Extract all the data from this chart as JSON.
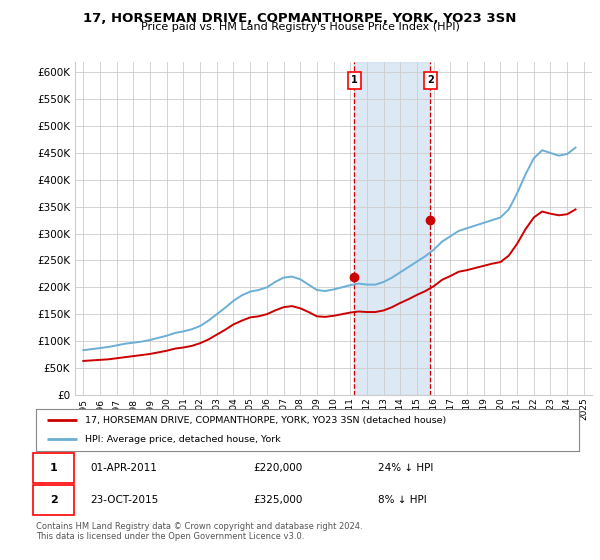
{
  "title": "17, HORSEMAN DRIVE, COPMANTHORPE, YORK, YO23 3SN",
  "subtitle": "Price paid vs. HM Land Registry's House Price Index (HPI)",
  "legend_line1": "17, HORSEMAN DRIVE, COPMANTHORPE, YORK, YO23 3SN (detached house)",
  "legend_line2": "HPI: Average price, detached house, York",
  "footer": "Contains HM Land Registry data © Crown copyright and database right 2024.\nThis data is licensed under the Open Government Licence v3.0.",
  "transactions": [
    {
      "id": 1,
      "date": "01-APR-2011",
      "price": 220000,
      "year": 2011.25,
      "pct": "24%",
      "direction": "↓"
    },
    {
      "id": 2,
      "date": "23-OCT-2015",
      "price": 325000,
      "year": 2015.8,
      "pct": "8%",
      "direction": "↓"
    }
  ],
  "hpi_color": "#6baed6",
  "price_color": "#cc0000",
  "marker_color": "#cc0000",
  "vline_color": "#cc0000",
  "highlight_color": "#c6dbef",
  "ylim": [
    0,
    620000
  ],
  "yticks": [
    0,
    50000,
    100000,
    150000,
    200000,
    250000,
    300000,
    350000,
    400000,
    450000,
    500000,
    550000,
    600000
  ],
  "hpi_data_x": [
    1995,
    1995.5,
    1996,
    1996.5,
    1997,
    1997.5,
    1998,
    1998.5,
    1999,
    1999.5,
    2000,
    2000.5,
    2001,
    2001.5,
    2002,
    2002.5,
    2003,
    2003.5,
    2004,
    2004.5,
    2005,
    2005.5,
    2006,
    2006.5,
    2007,
    2007.5,
    2008,
    2008.5,
    2009,
    2009.5,
    2010,
    2010.5,
    2011,
    2011.5,
    2012,
    2012.5,
    2013,
    2013.5,
    2014,
    2014.5,
    2015,
    2015.5,
    2016,
    2016.5,
    2017,
    2017.5,
    2018,
    2018.5,
    2019,
    2019.5,
    2020,
    2020.5,
    2021,
    2021.5,
    2022,
    2022.5,
    2023,
    2023.5,
    2024,
    2024.5
  ],
  "hpi_data_y": [
    83000,
    85000,
    87000,
    89000,
    92000,
    95000,
    97000,
    99000,
    102000,
    106000,
    110000,
    115000,
    118000,
    122000,
    128000,
    138000,
    150000,
    162000,
    175000,
    185000,
    192000,
    195000,
    200000,
    210000,
    218000,
    220000,
    215000,
    205000,
    195000,
    193000,
    196000,
    200000,
    204000,
    207000,
    205000,
    205000,
    210000,
    218000,
    228000,
    238000,
    248000,
    258000,
    270000,
    285000,
    295000,
    305000,
    310000,
    315000,
    320000,
    325000,
    330000,
    345000,
    375000,
    410000,
    440000,
    455000,
    450000,
    445000,
    448000,
    460000
  ],
  "price_data_x": [
    1995,
    1995.5,
    1996,
    1996.5,
    1997,
    1997.5,
    1998,
    1998.5,
    1999,
    1999.5,
    2000,
    2000.5,
    2001,
    2001.5,
    2002,
    2002.5,
    2003,
    2003.5,
    2004,
    2004.5,
    2005,
    2005.5,
    2006,
    2006.5,
    2007,
    2007.5,
    2008,
    2008.5,
    2009,
    2009.5,
    2010,
    2010.5,
    2011,
    2011.5,
    2012,
    2012.5,
    2013,
    2013.5,
    2014,
    2014.5,
    2015,
    2015.5,
    2016,
    2016.5,
    2017,
    2017.5,
    2018,
    2018.5,
    2019,
    2019.5,
    2020,
    2020.5,
    2021,
    2021.5,
    2022,
    2022.5,
    2023,
    2023.5,
    2024,
    2024.5
  ],
  "price_data_y": [
    63000,
    64000,
    65000,
    66000,
    68000,
    70000,
    72000,
    74000,
    76000,
    79000,
    82000,
    86000,
    88000,
    91000,
    96000,
    103000,
    112000,
    121000,
    131000,
    138000,
    144000,
    146000,
    150000,
    157000,
    163000,
    165000,
    161000,
    154000,
    146000,
    145000,
    147000,
    150000,
    153000,
    155000,
    154000,
    154000,
    157000,
    163000,
    171000,
    178000,
    186000,
    193000,
    202000,
    214000,
    221000,
    229000,
    232000,
    236000,
    240000,
    244000,
    247000,
    259000,
    281000,
    308000,
    330000,
    341000,
    337000,
    334000,
    336000,
    345000
  ]
}
